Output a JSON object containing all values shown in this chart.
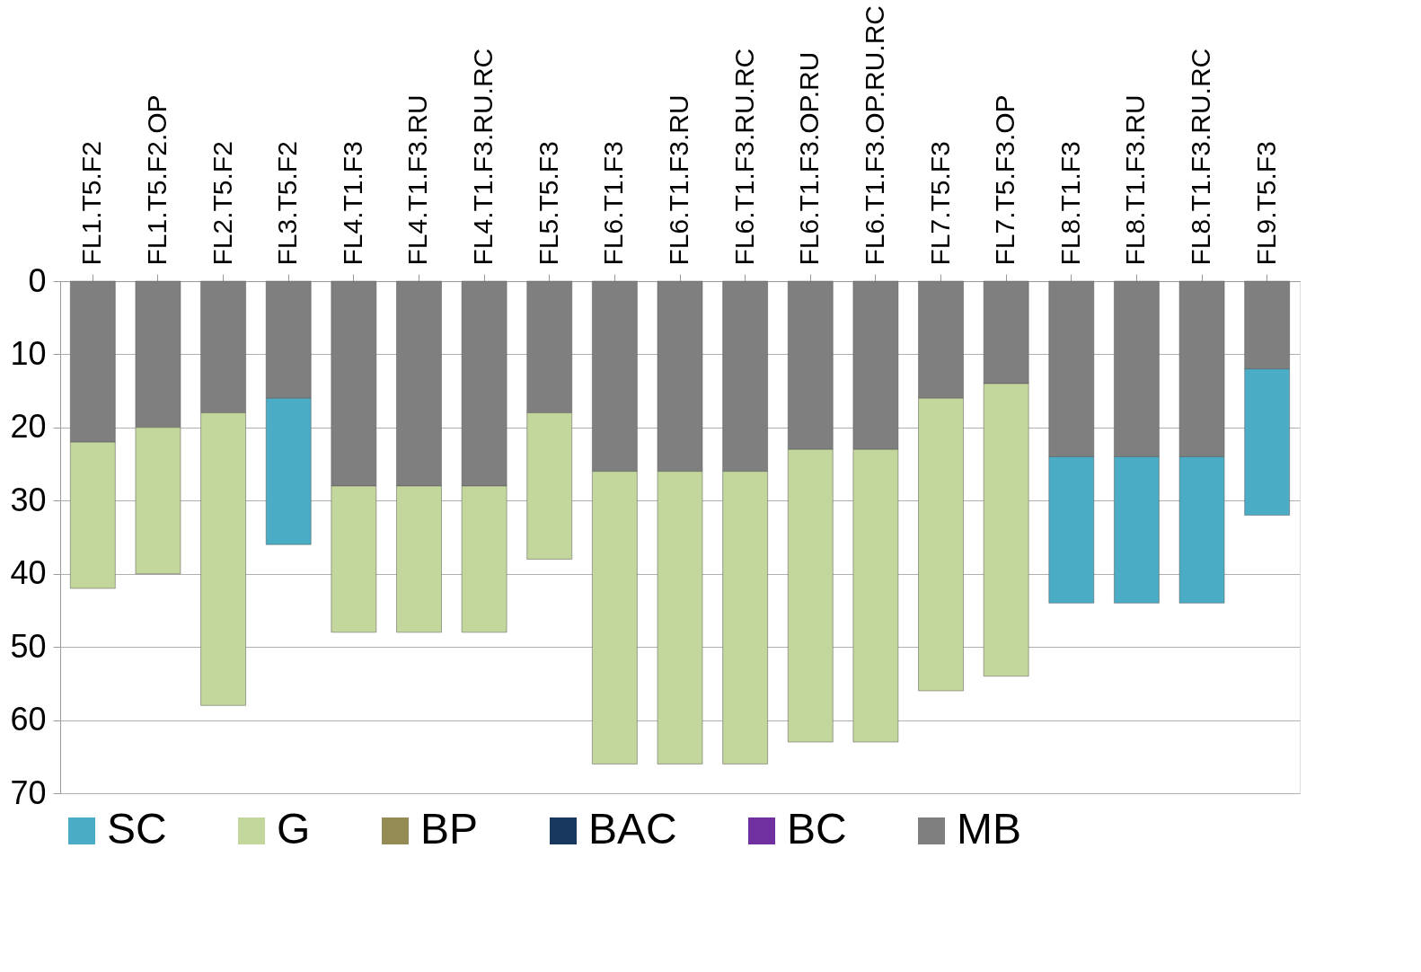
{
  "chart_data": {
    "type": "bar",
    "stacked": true,
    "categories": [
      "FL1.T5.F2",
      "FL1.T5.F2.OP",
      "FL2.T5.F2",
      "FL3.T5.F2",
      "FL4.T1.F3",
      "FL4.T1.F3.RU",
      "FL4.T1.F3.RU.RC",
      "FL5.T5.F3",
      "FL6.T1.F3",
      "FL6.T1.F3.RU",
      "FL6.T1.F3.RU.RC",
      "FL6.T1.F3.OP.RU",
      "FL6.T1.F3.OP.RU.RC",
      "FL7.T5.F3",
      "FL7.T5.F3.OP",
      "FL8.T1.F3",
      "FL8.T1.F3.RU",
      "FL8.T1.F3.RU.RC",
      "FL9.T5.F3"
    ],
    "series": [
      {
        "name": "MB",
        "color": "#7f7f7f",
        "values": [
          22,
          20,
          18,
          16,
          28,
          28,
          28,
          18,
          26,
          26,
          26,
          23,
          23,
          16,
          14,
          24,
          24,
          24,
          12
        ]
      },
      {
        "name": "BC",
        "color": "#7030a0",
        "values": [
          null,
          null,
          null,
          null,
          null,
          null,
          null,
          null,
          null,
          null,
          null,
          null,
          null,
          null,
          null,
          null,
          null,
          null,
          null
        ]
      },
      {
        "name": "BAC",
        "color": "#17375e",
        "values": [
          null,
          null,
          null,
          null,
          null,
          null,
          null,
          null,
          null,
          null,
          null,
          null,
          null,
          null,
          null,
          null,
          null,
          null,
          null
        ]
      },
      {
        "name": "BP",
        "color": "#948a54",
        "values": [
          null,
          null,
          null,
          null,
          null,
          null,
          null,
          null,
          null,
          null,
          null,
          null,
          null,
          null,
          null,
          null,
          null,
          null,
          null
        ]
      },
      {
        "name": "G",
        "color": "#c3d69b",
        "values": [
          20,
          20,
          40,
          null,
          20,
          20,
          20,
          20,
          40,
          40,
          40,
          40,
          40,
          40,
          40,
          null,
          null,
          null,
          null
        ]
      },
      {
        "name": "SC",
        "color": "#4bacc6",
        "values": [
          null,
          null,
          null,
          20,
          null,
          null,
          null,
          null,
          null,
          null,
          null,
          null,
          null,
          null,
          null,
          20,
          20,
          20,
          20
        ]
      }
    ],
    "ylim": [
      70,
      0
    ],
    "yticks": [
      0,
      10,
      20,
      30,
      40,
      50,
      60,
      70
    ],
    "grid": "y",
    "legend": "bottom"
  }
}
